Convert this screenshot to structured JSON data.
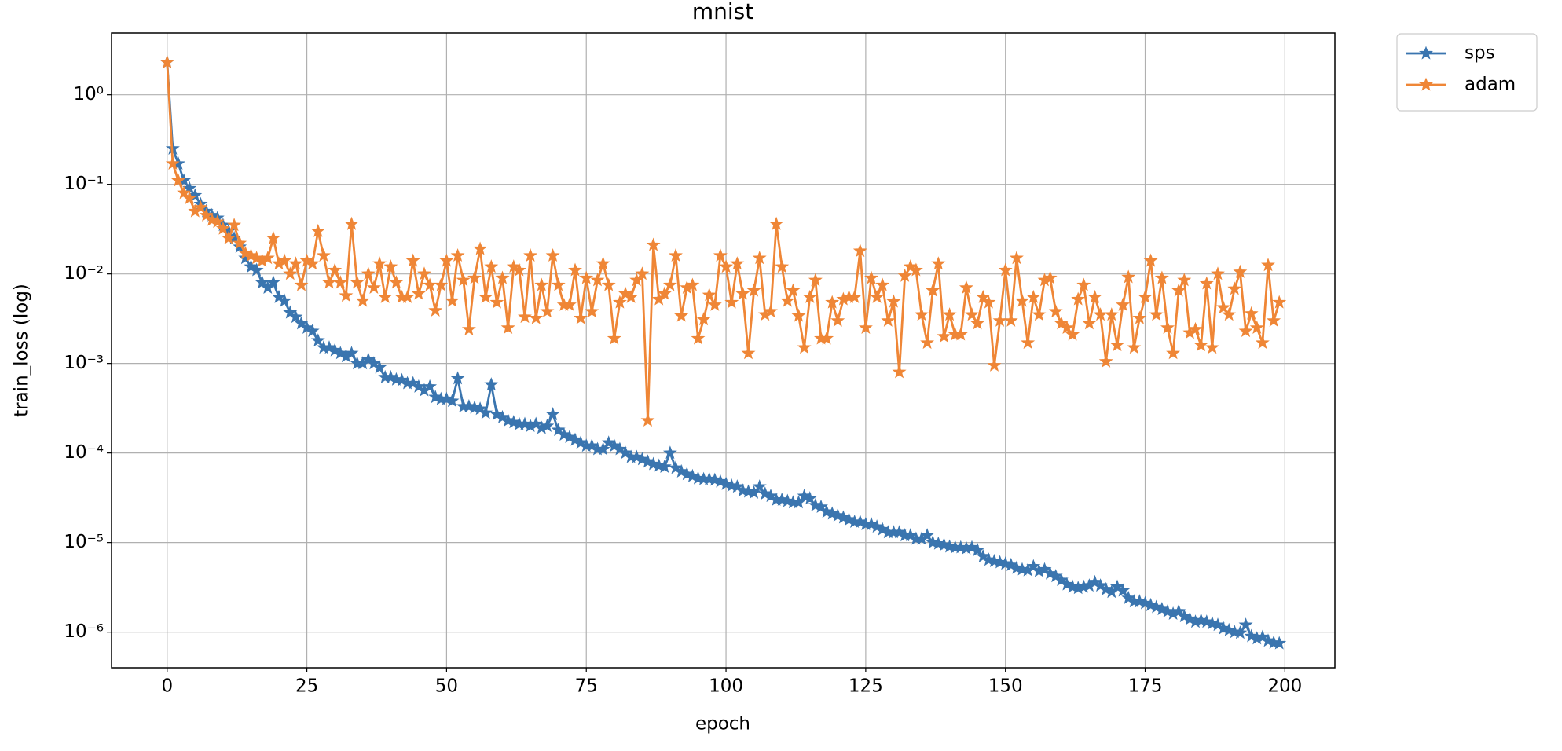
{
  "chart_data": {
    "type": "line",
    "title": "mnist",
    "xlabel": "epoch",
    "ylabel": "train_loss (log)",
    "yscale": "log",
    "grid": true,
    "legend": "outside upper right",
    "xlim": [
      -9.95,
      208.95
    ],
    "ylim": [
      4e-07,
      4.9
    ],
    "xticks": [
      0,
      25,
      50,
      75,
      100,
      125,
      150,
      175,
      200
    ],
    "yticks": [
      {
        "value": 1e-06,
        "label": "10⁻⁶"
      },
      {
        "value": 1e-05,
        "label": "10⁻⁵"
      },
      {
        "value": 0.0001,
        "label": "10⁻⁴"
      },
      {
        "value": 0.001,
        "label": "10⁻³"
      },
      {
        "value": 0.01,
        "label": "10⁻²"
      },
      {
        "value": 0.1,
        "label": "10⁻¹"
      },
      {
        "value": 1,
        "label": "10⁰"
      }
    ],
    "x": [
      0,
      1,
      2,
      3,
      4,
      5,
      6,
      7,
      8,
      9,
      10,
      11,
      12,
      13,
      14,
      15,
      16,
      17,
      18,
      19,
      20,
      21,
      22,
      23,
      24,
      25,
      26,
      27,
      28,
      29,
      30,
      31,
      32,
      33,
      34,
      35,
      36,
      37,
      38,
      39,
      40,
      41,
      42,
      43,
      44,
      45,
      46,
      47,
      48,
      49,
      50,
      51,
      52,
      53,
      54,
      55,
      56,
      57,
      58,
      59,
      60,
      61,
      62,
      63,
      64,
      65,
      66,
      67,
      68,
      69,
      70,
      71,
      72,
      73,
      74,
      75,
      76,
      77,
      78,
      79,
      80,
      81,
      82,
      83,
      84,
      85,
      86,
      87,
      88,
      89,
      90,
      91,
      92,
      93,
      94,
      95,
      96,
      97,
      98,
      99,
      100,
      101,
      102,
      103,
      104,
      105,
      106,
      107,
      108,
      109,
      110,
      111,
      112,
      113,
      114,
      115,
      116,
      117,
      118,
      119,
      120,
      121,
      122,
      123,
      124,
      125,
      126,
      127,
      128,
      129,
      130,
      131,
      132,
      133,
      134,
      135,
      136,
      137,
      138,
      139,
      140,
      141,
      142,
      143,
      144,
      145,
      146,
      147,
      148,
      149,
      150,
      151,
      152,
      153,
      154,
      155,
      156,
      157,
      158,
      159,
      160,
      161,
      162,
      163,
      164,
      165,
      166,
      167,
      168,
      169,
      170,
      171,
      172,
      173,
      174,
      175,
      176,
      177,
      178,
      179,
      180,
      181,
      182,
      183,
      184,
      185,
      186,
      187,
      188,
      189,
      190,
      191,
      192,
      193,
      194,
      195,
      196,
      197,
      198,
      199
    ],
    "series": [
      {
        "name": "sps",
        "color": "#3a75af",
        "values": [
          2.3,
          0.25,
          0.17,
          0.11,
          0.09,
          0.075,
          0.06,
          0.05,
          0.045,
          0.042,
          0.035,
          0.03,
          0.025,
          0.02,
          0.015,
          0.012,
          0.011,
          0.008,
          0.007,
          0.008,
          0.0055,
          0.005,
          0.0037,
          0.0033,
          0.0028,
          0.0025,
          0.0023,
          0.0018,
          0.0015,
          0.0015,
          0.0014,
          0.0013,
          0.0012,
          0.0013,
          0.001,
          0.001,
          0.0011,
          0.001,
          0.0009,
          0.0007,
          0.0007,
          0.00066,
          0.00065,
          0.0006,
          0.0006,
          0.00055,
          0.0005,
          0.00055,
          0.00042,
          0.0004,
          0.0004,
          0.00038,
          0.00068,
          0.00033,
          0.00033,
          0.00032,
          0.00031,
          0.00028,
          0.00058,
          0.00027,
          0.00025,
          0.00023,
          0.00022,
          0.00021,
          0.00021,
          0.0002,
          0.00021,
          0.00019,
          0.0002,
          0.00027,
          0.00018,
          0.00016,
          0.00015,
          0.00014,
          0.00013,
          0.00012,
          0.00012,
          0.00011,
          0.00011,
          0.00013,
          0.00012,
          0.00011,
          0.0001,
          9e-05,
          9e-05,
          8.5e-05,
          8e-05,
          7.5e-05,
          7.2e-05,
          7e-05,
          0.0001,
          6.8e-05,
          6.2e-05,
          5.8e-05,
          5.5e-05,
          5.2e-05,
          5.1e-05,
          5.1e-05,
          5e-05,
          4.8e-05,
          4.5e-05,
          4.3e-05,
          4.2e-05,
          3.8e-05,
          3.7e-05,
          3.6e-05,
          4.2e-05,
          3.5e-05,
          3.3e-05,
          3e-05,
          3e-05,
          2.9e-05,
          2.8e-05,
          2.8e-05,
          3.3e-05,
          3.1e-05,
          2.6e-05,
          2.5e-05,
          2.2e-05,
          2.1e-05,
          2e-05,
          1.9e-05,
          1.8e-05,
          1.7e-05,
          1.7e-05,
          1.6e-05,
          1.6e-05,
          1.5e-05,
          1.4e-05,
          1.3e-05,
          1.3e-05,
          1.3e-05,
          1.2e-05,
          1.2e-05,
          1.1e-05,
          1.1e-05,
          1.2e-05,
          1e-05,
          9.7e-06,
          9.4e-06,
          9e-06,
          8.8e-06,
          8.8e-06,
          8.6e-06,
          8.8e-06,
          8.2e-06,
          7e-06,
          6.4e-06,
          6.2e-06,
          6e-06,
          5.8e-06,
          5.6e-06,
          5.2e-06,
          5e-06,
          4.9e-06,
          5.4e-06,
          4.8e-06,
          5e-06,
          4.5e-06,
          4.2e-06,
          3.8e-06,
          3.4e-06,
          3.2e-06,
          3.1e-06,
          3.2e-06,
          3.3e-06,
          3.6e-06,
          3.3e-06,
          3e-06,
          2.8e-06,
          3.2e-06,
          2.9e-06,
          2.4e-06,
          2.2e-06,
          2.2e-06,
          2.1e-06,
          2e-06,
          1.9e-06,
          1.8e-06,
          1.7e-06,
          1.6e-06,
          1.7e-06,
          1.5e-06,
          1.4e-06,
          1.3e-06,
          1.35e-06,
          1.3e-06,
          1.25e-06,
          1.2e-06,
          1.1e-06,
          1.05e-06,
          1e-06,
          9.8e-07,
          1.2e-06,
          9e-07,
          8.5e-07,
          8.8e-07,
          8e-07,
          7.6e-07,
          7.5e-07
        ]
      },
      {
        "name": "adam",
        "color": "#ef8636",
        "values": [
          2.3,
          0.17,
          0.11,
          0.08,
          0.07,
          0.05,
          0.055,
          0.045,
          0.04,
          0.038,
          0.032,
          0.025,
          0.035,
          0.022,
          0.017,
          0.016,
          0.015,
          0.014,
          0.015,
          0.025,
          0.013,
          0.014,
          0.01,
          0.013,
          0.0075,
          0.014,
          0.013,
          0.03,
          0.016,
          0.008,
          0.011,
          0.008,
          0.0057,
          0.036,
          0.008,
          0.005,
          0.01,
          0.007,
          0.013,
          0.0055,
          0.012,
          0.008,
          0.0055,
          0.0055,
          0.014,
          0.006,
          0.01,
          0.0075,
          0.0039,
          0.0075,
          0.014,
          0.005,
          0.016,
          0.0085,
          0.0024,
          0.009,
          0.019,
          0.0055,
          0.012,
          0.0048,
          0.009,
          0.0025,
          0.012,
          0.011,
          0.0033,
          0.016,
          0.0032,
          0.0075,
          0.0038,
          0.016,
          0.0075,
          0.0045,
          0.0045,
          0.011,
          0.0032,
          0.009,
          0.0038,
          0.0085,
          0.013,
          0.0075,
          0.0019,
          0.0048,
          0.006,
          0.0055,
          0.0085,
          0.01,
          0.00023,
          0.021,
          0.0052,
          0.006,
          0.0075,
          0.016,
          0.0034,
          0.007,
          0.0075,
          0.0019,
          0.0031,
          0.0058,
          0.0045,
          0.016,
          0.012,
          0.0048,
          0.013,
          0.006,
          0.0013,
          0.0065,
          0.015,
          0.0035,
          0.0038,
          0.036,
          0.012,
          0.005,
          0.0065,
          0.0034,
          0.0015,
          0.0055,
          0.0085,
          0.0019,
          0.0019,
          0.0048,
          0.003,
          0.0052,
          0.0055,
          0.0055,
          0.018,
          0.0025,
          0.009,
          0.0055,
          0.0075,
          0.003,
          0.0049,
          0.0008,
          0.0095,
          0.012,
          0.011,
          0.0035,
          0.0017,
          0.0065,
          0.013,
          0.002,
          0.0035,
          0.0021,
          0.0021,
          0.007,
          0.0035,
          0.0028,
          0.0055,
          0.0048,
          0.00095,
          0.003,
          0.011,
          0.003,
          0.015,
          0.005,
          0.0017,
          0.0055,
          0.0035,
          0.0085,
          0.009,
          0.0038,
          0.0028,
          0.0025,
          0.0021,
          0.0052,
          0.0075,
          0.0028,
          0.0055,
          0.0035,
          0.00105,
          0.0035,
          0.0016,
          0.0045,
          0.0092,
          0.0015,
          0.0032,
          0.0055,
          0.014,
          0.0035,
          0.009,
          0.0025,
          0.0013,
          0.0065,
          0.0085,
          0.0022,
          0.0024,
          0.0016,
          0.0078,
          0.0015,
          0.01,
          0.0042,
          0.0035,
          0.0068,
          0.0105,
          0.0023,
          0.0036,
          0.0025,
          0.0017,
          0.0125,
          0.003,
          0.0048
        ]
      }
    ]
  }
}
